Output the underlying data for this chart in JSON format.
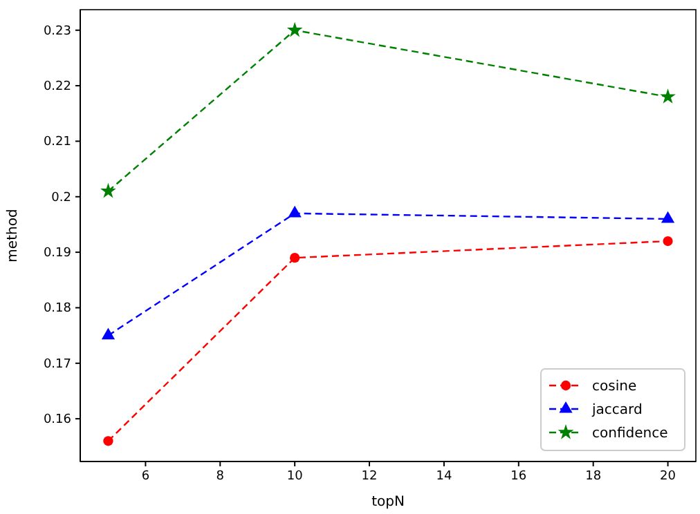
{
  "chart_data": {
    "type": "line",
    "xlabel": "topN",
    "ylabel": "method",
    "x": [
      5,
      10,
      20
    ],
    "xlim": [
      4.25,
      20.75
    ],
    "xticks": [
      6,
      8,
      10,
      12,
      14,
      16,
      18,
      20
    ],
    "ylim": [
      0.1523,
      0.2337
    ],
    "yticks": [
      0.16,
      0.17,
      0.18,
      0.19,
      0.2,
      0.21,
      0.22,
      0.23
    ],
    "line_style": "dashed",
    "legend": "bottom right",
    "grid": false,
    "series": [
      {
        "name": "cosine",
        "color": "#ff0000",
        "marker": "circle",
        "values": [
          0.156,
          0.189,
          0.192
        ]
      },
      {
        "name": "jaccard",
        "color": "#0000ff",
        "marker": "triangle",
        "values": [
          0.175,
          0.197,
          0.196
        ]
      },
      {
        "name": "confidence",
        "color": "#008000",
        "marker": "star",
        "values": [
          0.201,
          0.23,
          0.218
        ]
      }
    ]
  }
}
